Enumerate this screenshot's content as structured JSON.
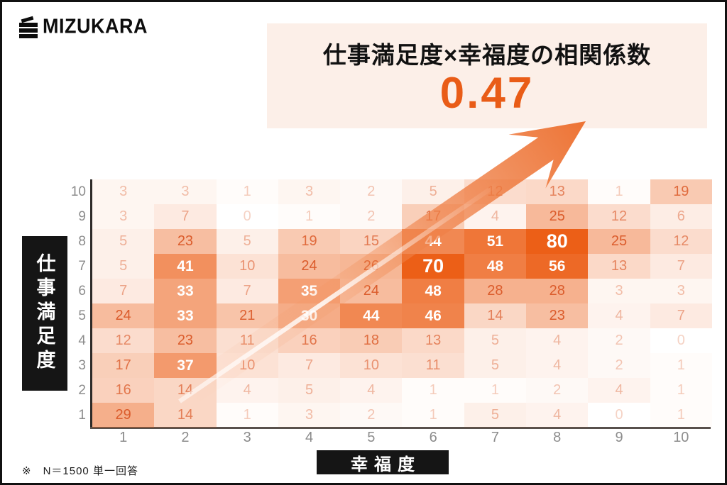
{
  "logo": {
    "text": "MIZUKARA"
  },
  "title_box": {
    "title": "仕事満足度×幸福度の相関係数",
    "value": "0.47"
  },
  "axes": {
    "y_title": "仕事満足度",
    "x_title": "幸福度"
  },
  "footnote": "※　N＝1500 単一回答",
  "colors": {
    "accent_orange": "#e95c17",
    "cell_base_rgb": "236,95,23",
    "cell_text_rgb": "219,92,44",
    "title_box_bg": "#fcefe8",
    "axis_tick_gray": "#8c8c8c",
    "label_box_black": "#151515",
    "arrow_orange": "#ee7a3c"
  },
  "chart_data": {
    "type": "heatmap",
    "title": "仕事満足度×幸福度の相関係数",
    "correlation_coefficient": 0.47,
    "xlabel": "幸福度",
    "ylabel": "仕事満足度",
    "x_categories": [
      1,
      2,
      3,
      4,
      5,
      6,
      7,
      8,
      9,
      10
    ],
    "y_categories": [
      10,
      9,
      8,
      7,
      6,
      5,
      4,
      3,
      2,
      1
    ],
    "values": [
      [
        3,
        3,
        1,
        3,
        2,
        5,
        12,
        13,
        1,
        19
      ],
      [
        3,
        7,
        0,
        1,
        2,
        17,
        4,
        25,
        12,
        6
      ],
      [
        5,
        23,
        5,
        19,
        15,
        44,
        51,
        80,
        25,
        12
      ],
      [
        5,
        41,
        10,
        24,
        26,
        70,
        48,
        56,
        13,
        7
      ],
      [
        7,
        33,
        7,
        35,
        24,
        48,
        28,
        28,
        3,
        3
      ],
      [
        24,
        33,
        21,
        30,
        44,
        46,
        14,
        23,
        4,
        7
      ],
      [
        12,
        23,
        11,
        16,
        18,
        13,
        5,
        4,
        2,
        0
      ],
      [
        17,
        37,
        10,
        7,
        10,
        11,
        5,
        4,
        2,
        1
      ],
      [
        16,
        14,
        4,
        5,
        4,
        1,
        1,
        2,
        4,
        1
      ],
      [
        29,
        14,
        1,
        3,
        2,
        1,
        5,
        4,
        0,
        1
      ]
    ],
    "value_range": [
      0,
      80
    ],
    "white_text_threshold": 30,
    "legend": "none",
    "note": "N＝1500 単一回答"
  }
}
